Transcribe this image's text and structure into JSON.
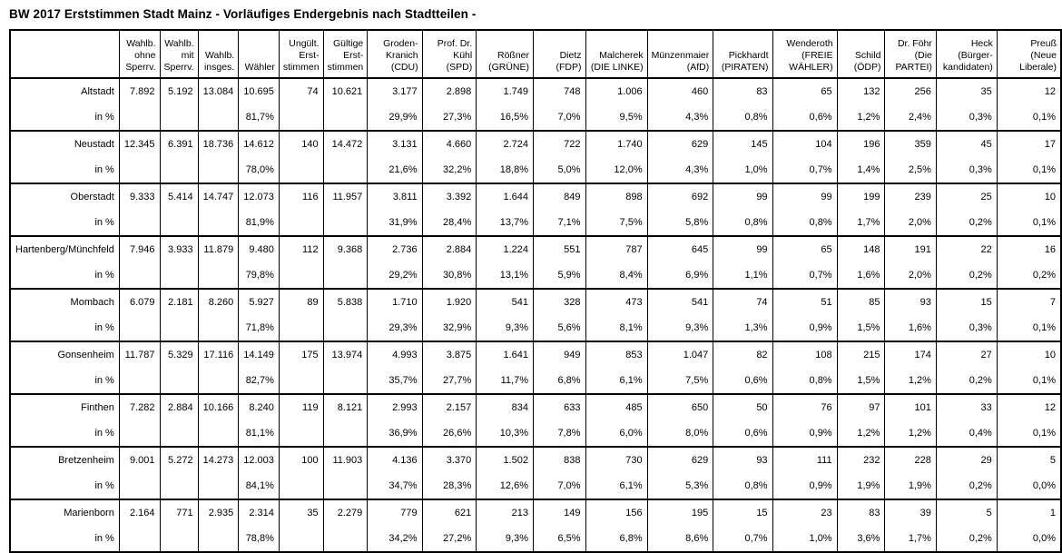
{
  "title": "BW 2017 Erststimmen Stadt Mainz  - Vorläufiges Endergebnis nach Stadtteilen -",
  "table": {
    "percent_row_label": "in %",
    "columns": [
      "",
      "Wahlb.\nohne\nSperrv.",
      "Wahlb.\nmit\nSperrv.",
      "Wahlb.\ninsges.",
      "Wähler",
      "Ungült.\nErst-\nstimmen",
      "Gültige\nErst-\nstimmen",
      "Groden-\nKranich\n(CDU)",
      "Prof. Dr.\nKühl\n(SPD)",
      "Rößner\n(GRÜNE)",
      "Dietz\n(FDP)",
      "Malcherek\n(DIE LINKE)",
      "Münzenmaier\n(AfD)",
      "Pickhardt\n(PIRATEN)",
      "Wenderoth\n(FREIE\nWÄHLER)",
      "Schild\n(ÖDP)",
      "Dr. Föhr\n(Die\nPARTEI)",
      "Heck (Bürger-\nkandidaten)",
      "Preuß\n(Neue\nLiberale)"
    ],
    "districts": [
      {
        "name": "Altstadt",
        "counts": [
          "7.892",
          "5.192",
          "13.084",
          "10.695",
          "74",
          "10.621",
          "3.177",
          "2.898",
          "1.749",
          "748",
          "1.006",
          "460",
          "83",
          "65",
          "132",
          "256",
          "35",
          "12"
        ],
        "percents": [
          "",
          "",
          "",
          "81,7%",
          "",
          "",
          "29,9%",
          "27,3%",
          "16,5%",
          "7,0%",
          "9,5%",
          "4,3%",
          "0,8%",
          "0,6%",
          "1,2%",
          "2,4%",
          "0,3%",
          "0,1%"
        ]
      },
      {
        "name": "Neustadt",
        "counts": [
          "12.345",
          "6.391",
          "18.736",
          "14.612",
          "140",
          "14.472",
          "3.131",
          "4.660",
          "2.724",
          "722",
          "1.740",
          "629",
          "145",
          "104",
          "196",
          "359",
          "45",
          "17"
        ],
        "percents": [
          "",
          "",
          "",
          "78,0%",
          "",
          "",
          "21,6%",
          "32,2%",
          "18,8%",
          "5,0%",
          "12,0%",
          "4,3%",
          "1,0%",
          "0,7%",
          "1,4%",
          "2,5%",
          "0,3%",
          "0,1%"
        ]
      },
      {
        "name": "Oberstadt",
        "counts": [
          "9.333",
          "5.414",
          "14.747",
          "12.073",
          "116",
          "11.957",
          "3.811",
          "3.392",
          "1.644",
          "849",
          "898",
          "692",
          "99",
          "99",
          "199",
          "239",
          "25",
          "10"
        ],
        "percents": [
          "",
          "",
          "",
          "81,9%",
          "",
          "",
          "31,9%",
          "28,4%",
          "13,7%",
          "7,1%",
          "7,5%",
          "5,8%",
          "0,8%",
          "0,8%",
          "1,7%",
          "2,0%",
          "0,2%",
          "0,1%"
        ]
      },
      {
        "name": "Hartenberg/Münchfeld",
        "counts": [
          "7.946",
          "3.933",
          "11.879",
          "9.480",
          "112",
          "9.368",
          "2.736",
          "2.884",
          "1.224",
          "551",
          "787",
          "645",
          "99",
          "65",
          "148",
          "191",
          "22",
          "16"
        ],
        "percents": [
          "",
          "",
          "",
          "79,8%",
          "",
          "",
          "29,2%",
          "30,8%",
          "13,1%",
          "5,9%",
          "8,4%",
          "6,9%",
          "1,1%",
          "0,7%",
          "1,6%",
          "2,0%",
          "0,2%",
          "0,2%"
        ]
      },
      {
        "name": "Mombach",
        "counts": [
          "6.079",
          "2.181",
          "8.260",
          "5.927",
          "89",
          "5.838",
          "1.710",
          "1.920",
          "541",
          "328",
          "473",
          "541",
          "74",
          "51",
          "85",
          "93",
          "15",
          "7"
        ],
        "percents": [
          "",
          "",
          "",
          "71,8%",
          "",
          "",
          "29,3%",
          "32,9%",
          "9,3%",
          "5,6%",
          "8,1%",
          "9,3%",
          "1,3%",
          "0,9%",
          "1,5%",
          "1,6%",
          "0,3%",
          "0,1%"
        ]
      },
      {
        "name": "Gonsenheim",
        "counts": [
          "11.787",
          "5.329",
          "17.116",
          "14.149",
          "175",
          "13.974",
          "4.993",
          "3.875",
          "1.641",
          "949",
          "853",
          "1.047",
          "82",
          "108",
          "215",
          "174",
          "27",
          "10"
        ],
        "percents": [
          "",
          "",
          "",
          "82,7%",
          "",
          "",
          "35,7%",
          "27,7%",
          "11,7%",
          "6,8%",
          "6,1%",
          "7,5%",
          "0,6%",
          "0,8%",
          "1,5%",
          "1,2%",
          "0,2%",
          "0,1%"
        ]
      },
      {
        "name": "Finthen",
        "counts": [
          "7.282",
          "2.884",
          "10.166",
          "8.240",
          "119",
          "8.121",
          "2.993",
          "2.157",
          "834",
          "633",
          "485",
          "650",
          "50",
          "76",
          "97",
          "101",
          "33",
          "12"
        ],
        "percents": [
          "",
          "",
          "",
          "81,1%",
          "",
          "",
          "36,9%",
          "26,6%",
          "10,3%",
          "7,8%",
          "6,0%",
          "8,0%",
          "0,6%",
          "0,9%",
          "1,2%",
          "1,2%",
          "0,4%",
          "0,1%"
        ]
      },
      {
        "name": "Bretzenheim",
        "counts": [
          "9.001",
          "5.272",
          "14.273",
          "12.003",
          "100",
          "11.903",
          "4.136",
          "3.370",
          "1.502",
          "838",
          "730",
          "629",
          "93",
          "111",
          "232",
          "228",
          "29",
          "5"
        ],
        "percents": [
          "",
          "",
          "",
          "84,1%",
          "",
          "",
          "34,7%",
          "28,3%",
          "12,6%",
          "7,0%",
          "6,1%",
          "5,3%",
          "0,8%",
          "0,9%",
          "1,9%",
          "1,9%",
          "0,2%",
          "0,0%"
        ]
      },
      {
        "name": "Marienborn",
        "counts": [
          "2.164",
          "771",
          "2.935",
          "2.314",
          "35",
          "2.279",
          "779",
          "621",
          "213",
          "149",
          "156",
          "195",
          "15",
          "23",
          "83",
          "39",
          "5",
          "1"
        ],
        "percents": [
          "",
          "",
          "",
          "78,8%",
          "",
          "",
          "34,2%",
          "27,2%",
          "9,3%",
          "6,5%",
          "6,8%",
          "8,6%",
          "0,7%",
          "1,0%",
          "3,6%",
          "1,7%",
          "0,2%",
          "0,0%"
        ]
      }
    ]
  }
}
